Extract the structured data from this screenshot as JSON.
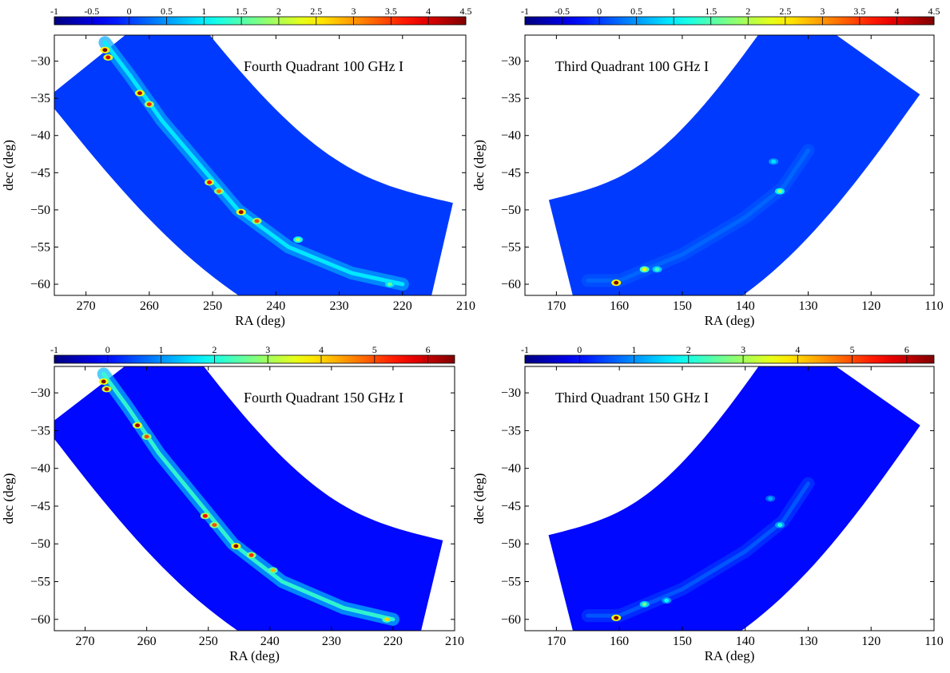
{
  "figure": {
    "description_colormap": "jet"
  },
  "chart_data": [
    {
      "type": "heatmap",
      "title": "Fourth Quadrant 100 GHz I",
      "xlabel": "RA (deg)",
      "ylabel": "dec (deg)",
      "xlim": [
        275,
        210
      ],
      "ylim": [
        -61.5,
        -26.5
      ],
      "x_ticks": [
        270,
        260,
        250,
        240,
        230,
        220,
        210
      ],
      "y_ticks": [
        -30,
        -35,
        -40,
        -45,
        -50,
        -55,
        -60
      ],
      "colorbar": {
        "min": -1,
        "max": 4.5,
        "ticks": [
          "-1",
          "-0.5",
          "0",
          "0.5",
          "1",
          "1.5",
          "2",
          "2.5",
          "3",
          "3.5",
          "4",
          "4.5"
        ]
      },
      "footprint": {
        "ra_center": [
          266,
          215
        ],
        "dec_center": [
          -28,
          -60
        ],
        "width_deg": 24
      },
      "ridge": [
        [
          267,
          -27.5
        ],
        [
          263,
          -32
        ],
        [
          258,
          -38
        ],
        [
          252,
          -44
        ],
        [
          246,
          -50
        ],
        [
          238,
          -55
        ],
        [
          228,
          -58.5
        ],
        [
          220,
          -60
        ]
      ],
      "ridge_level": 1.0,
      "sources": [
        {
          "ra": 267.0,
          "dec": -28.5,
          "value": 4.5
        },
        {
          "ra": 266.5,
          "dec": -29.5,
          "value": 4.0
        },
        {
          "ra": 261.5,
          "dec": -34.3,
          "value": 4.3
        },
        {
          "ra": 260.0,
          "dec": -35.8,
          "value": 3.6
        },
        {
          "ra": 250.5,
          "dec": -46.3,
          "value": 3.8
        },
        {
          "ra": 249.0,
          "dec": -47.5,
          "value": 3.2
        },
        {
          "ra": 245.5,
          "dec": -50.3,
          "value": 4.4
        },
        {
          "ra": 243.0,
          "dec": -51.5,
          "value": 3.4
        },
        {
          "ra": 236.5,
          "dec": -54.0,
          "value": 2.0
        },
        {
          "ra": 222.0,
          "dec": -60.0,
          "value": 1.6
        }
      ]
    },
    {
      "type": "heatmap",
      "title": "Third Quadrant 100 GHz I",
      "xlabel": "RA (deg)",
      "ylabel": "dec (deg)",
      "xlim": [
        175,
        110
      ],
      "ylim": [
        -61.5,
        -26.5
      ],
      "x_ticks": [
        170,
        160,
        150,
        140,
        130,
        120,
        110
      ],
      "y_ticks": [
        -30,
        -35,
        -40,
        -45,
        -50,
        -55,
        -60
      ],
      "colorbar": {
        "min": -1,
        "max": 4.5,
        "ticks": [
          "-1",
          "-0.5",
          "0",
          "0.5",
          "1",
          "1.5",
          "2",
          "2.5",
          "3",
          "3.5",
          "4",
          "4.5"
        ]
      },
      "footprint": {
        "ra_center": [
          168,
          123
        ],
        "dec_center": [
          -59.5,
          -28
        ],
        "width_deg": 24
      },
      "ridge": [
        [
          165,
          -59.5
        ],
        [
          160,
          -59.5
        ],
        [
          150,
          -56
        ],
        [
          140,
          -51
        ],
        [
          134,
          -47
        ],
        [
          130,
          -42
        ]
      ],
      "ridge_level": 0.25,
      "sources": [
        {
          "ra": 160.5,
          "dec": -59.8,
          "value": 4.5
        },
        {
          "ra": 156.0,
          "dec": -58.0,
          "value": 2.5
        },
        {
          "ra": 154.0,
          "dec": -58.0,
          "value": 1.4
        },
        {
          "ra": 134.5,
          "dec": -47.5,
          "value": 1.8
        },
        {
          "ra": 135.5,
          "dec": -43.5,
          "value": 0.9
        }
      ]
    },
    {
      "type": "heatmap",
      "title": "Fourth Quadrant 150 GHz I",
      "xlabel": "RA (deg)",
      "ylabel": "dec (deg)",
      "xlim": [
        275,
        210
      ],
      "ylim": [
        -61.5,
        -26.5
      ],
      "x_ticks": [
        270,
        260,
        250,
        240,
        230,
        220,
        210
      ],
      "y_ticks": [
        -30,
        -35,
        -40,
        -45,
        -50,
        -55,
        -60
      ],
      "colorbar": {
        "min": -1,
        "max": 6.5,
        "ticks": [
          "-1",
          "0",
          "1",
          "2",
          "3",
          "4",
          "5",
          "6"
        ]
      },
      "footprint": {
        "ra_center": [
          266,
          215
        ],
        "dec_center": [
          -28,
          -60
        ],
        "width_deg": 24
      },
      "ridge": [
        [
          267,
          -27.5
        ],
        [
          263,
          -32
        ],
        [
          258,
          -38
        ],
        [
          252,
          -44
        ],
        [
          246,
          -50
        ],
        [
          238,
          -55
        ],
        [
          228,
          -58.5
        ],
        [
          220,
          -60
        ]
      ],
      "ridge_level": 2.2,
      "sources": [
        {
          "ra": 267.0,
          "dec": -28.5,
          "value": 6.5
        },
        {
          "ra": 266.5,
          "dec": -29.5,
          "value": 6.0
        },
        {
          "ra": 261.5,
          "dec": -34.3,
          "value": 6.2
        },
        {
          "ra": 260.0,
          "dec": -35.8,
          "value": 5.0
        },
        {
          "ra": 250.5,
          "dec": -46.3,
          "value": 5.5
        },
        {
          "ra": 249.0,
          "dec": -47.5,
          "value": 5.0
        },
        {
          "ra": 245.5,
          "dec": -50.3,
          "value": 6.4
        },
        {
          "ra": 243.0,
          "dec": -51.5,
          "value": 5.2
        },
        {
          "ra": 239.5,
          "dec": -53.5,
          "value": 4.2
        },
        {
          "ra": 221.0,
          "dec": -60.0,
          "value": 4.0
        }
      ]
    },
    {
      "type": "heatmap",
      "title": "Third Quadrant 150 GHz I",
      "xlabel": "RA (deg)",
      "ylabel": "dec (deg)",
      "xlim": [
        175,
        110
      ],
      "ylim": [
        -61.5,
        -26.5
      ],
      "x_ticks": [
        170,
        160,
        150,
        140,
        130,
        120,
        110
      ],
      "y_ticks": [
        -30,
        -35,
        -40,
        -45,
        -50,
        -55,
        -60
      ],
      "colorbar": {
        "min": -1,
        "max": 6.5,
        "ticks": [
          "-1",
          "0",
          "1",
          "2",
          "3",
          "4",
          "5",
          "6"
        ]
      },
      "footprint": {
        "ra_center": [
          168,
          123
        ],
        "dec_center": [
          -59.5,
          -28
        ],
        "width_deg": 24
      },
      "ridge": [
        [
          165,
          -59.5
        ],
        [
          160,
          -59.5
        ],
        [
          150,
          -56
        ],
        [
          140,
          -51
        ],
        [
          134,
          -47
        ],
        [
          130,
          -42
        ]
      ],
      "ridge_level": 0.6,
      "sources": [
        {
          "ra": 160.5,
          "dec": -59.8,
          "value": 6.5
        },
        {
          "ra": 156.0,
          "dec": -58.0,
          "value": 2.6
        },
        {
          "ra": 152.5,
          "dec": -57.5,
          "value": 1.8
        },
        {
          "ra": 134.5,
          "dec": -47.5,
          "value": 2.0
        },
        {
          "ra": 136.0,
          "dec": -44.0,
          "value": 1.2
        }
      ]
    }
  ]
}
